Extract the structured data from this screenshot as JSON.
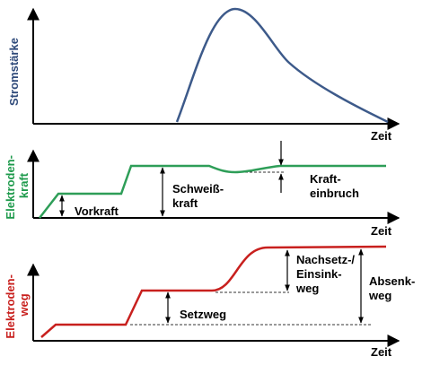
{
  "colors": {
    "current": "#3d5a8a",
    "force": "#2e9e58",
    "path": "#c8201e",
    "axis": "#000000",
    "dash": "#333333"
  },
  "panels": {
    "current": {
      "ylabel": [
        "Stromstärke"
      ],
      "xlabel": "Zeit"
    },
    "force": {
      "ylabel": [
        "Elektroden-",
        "kraft"
      ],
      "xlabel": "Zeit"
    },
    "path": {
      "ylabel": [
        "Elektroden-",
        "weg"
      ],
      "xlabel": "Zeit"
    }
  },
  "annotations": {
    "vorkraft": "Vorkraft",
    "schweisskraft": [
      "Schweiß-",
      "kraft"
    ],
    "krafteinbruch": [
      "Kraft-",
      "einbruch"
    ],
    "setzweg": "Setzweg",
    "nachsetz": [
      "Nachsetz-/",
      "Einsink-",
      "weg"
    ],
    "absenkweg": [
      "Absenk-",
      "weg"
    ]
  }
}
